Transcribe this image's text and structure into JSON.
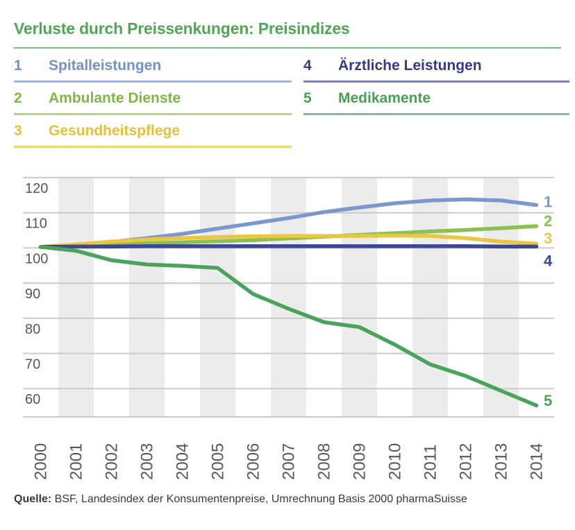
{
  "title": "Verluste durch Preissenkungen: Preisindizes",
  "title_color": "#4fa653",
  "legend": {
    "items": [
      {
        "num": "1",
        "label": "Spitalleistungen",
        "color": "#7490c7",
        "underline_color": "#9fb4d6"
      },
      {
        "num": "2",
        "label": "Ambulante Dienste",
        "color": "#7db843",
        "underline_color": "#b9d27e"
      },
      {
        "num": "3",
        "label": "Gesundheitspflege",
        "color": "#e5c03c",
        "underline_color": "#eed46a"
      },
      {
        "num": "4",
        "label": "Ärztliche Leistungen",
        "color": "#35388d",
        "underline_color": "#7e7fb4"
      },
      {
        "num": "5",
        "label": "Medikamente",
        "color": "#47a156",
        "underline_color": "#84bd93"
      }
    ]
  },
  "chart_data": {
    "type": "line",
    "title": "Verluste durch Preissenkungen: Preisindizes",
    "xlabel": "",
    "ylabel": "",
    "categories": [
      "2000",
      "2001",
      "2002",
      "2003",
      "2004",
      "2005",
      "2006",
      "2007",
      "2008",
      "2009",
      "2010",
      "2011",
      "2012",
      "2013",
      "2014"
    ],
    "y_ticks": [
      120,
      110,
      100,
      90,
      80,
      70,
      60
    ],
    "ylim": [
      52,
      120
    ],
    "grid": true,
    "legend_position": "top",
    "band_color": "#ececec",
    "grid_color": "#c9cacb",
    "axis_text_color": "#56575b",
    "series": [
      {
        "id": "1",
        "name": "Spitalleistungen",
        "color": "#7b98ce",
        "label_v": 113.0,
        "values": [
          100.3,
          100.8,
          101.7,
          102.8,
          104.0,
          105.5,
          107.0,
          108.5,
          110.2,
          111.5,
          112.7,
          113.5,
          113.8,
          113.5,
          112.2
        ]
      },
      {
        "id": "2",
        "name": "Ambulante Dienste",
        "color": "#8dc04f",
        "label_v": 107.6,
        "values": [
          100.3,
          100.5,
          100.9,
          101.3,
          101.6,
          101.9,
          102.2,
          102.7,
          103.2,
          103.7,
          104.2,
          104.7,
          105.1,
          105.6,
          106.2
        ]
      },
      {
        "id": "3",
        "name": "Gesundheitspflege",
        "color": "#ebc741",
        "label_v": 102.6,
        "values": [
          100.3,
          101.0,
          101.8,
          102.4,
          102.8,
          103.1,
          103.3,
          103.4,
          103.4,
          103.4,
          103.5,
          103.4,
          102.8,
          101.8,
          101.2
        ]
      },
      {
        "id": "4",
        "name": "Ärztliche Leistungen",
        "color": "#3b4795",
        "label_v": 96.2,
        "values": [
          100.3,
          100.4,
          100.4,
          100.5,
          100.5,
          100.5,
          100.5,
          100.5,
          100.5,
          100.5,
          100.5,
          100.5,
          100.5,
          100.4,
          100.4
        ]
      },
      {
        "id": "5",
        "name": "Medikamente",
        "color": "#4aa35c",
        "label_v": 56.5,
        "values": [
          100.3,
          99.2,
          96.5,
          95.3,
          94.9,
          94.3,
          86.9,
          82.7,
          78.9,
          77.5,
          72.5,
          66.9,
          63.6,
          59.4,
          55.2
        ]
      }
    ]
  },
  "footer": {
    "source_label": "Quelle:",
    "source_text": " BSF, Landesindex der Konsumentenpreise, Umrechnung Basis 2000 pharmaSuisse"
  }
}
